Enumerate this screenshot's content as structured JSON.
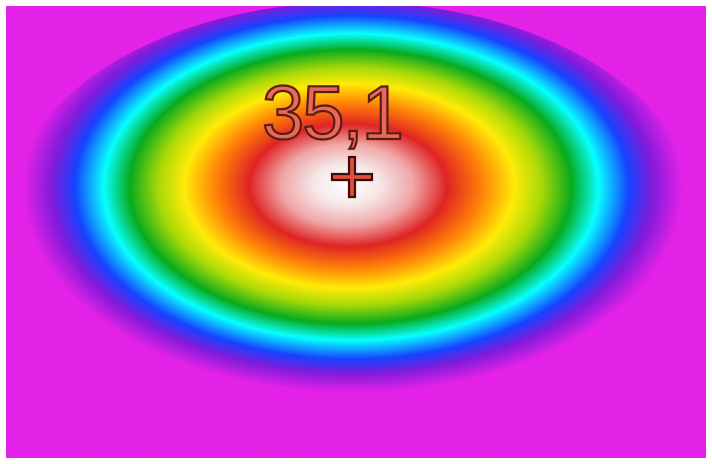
{
  "thermal_image": {
    "spot_temperature": "35,1",
    "palette": [
      "#ffffff",
      "#f4c6c2",
      "#e11b1b",
      "#ff8c00",
      "#ffff00",
      "#8fd400",
      "#00a81c",
      "#00ffff",
      "#1040ff",
      "#8a1ce0",
      "#e21be6"
    ],
    "marker_icon": "crosshair-icon"
  }
}
